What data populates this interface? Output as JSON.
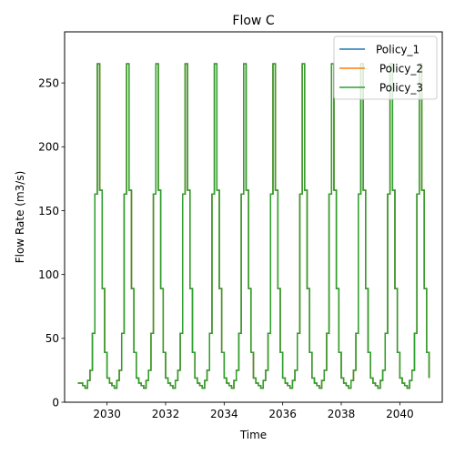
{
  "chart_data": {
    "type": "line",
    "title": "Flow C",
    "xlabel": "Time",
    "ylabel": "Flow Rate (m3/s)",
    "xlim": [
      2028.55,
      2041.45
    ],
    "ylim": [
      0,
      290
    ],
    "x_ticks": [
      2030,
      2032,
      2034,
      2036,
      2038,
      2040
    ],
    "x_tick_labels": [
      "2030",
      "2032",
      "2034",
      "2036",
      "2038",
      "2040"
    ],
    "y_ticks": [
      0,
      50,
      100,
      150,
      200,
      250
    ],
    "y_tick_labels": [
      "0",
      "50",
      "100",
      "150",
      "200",
      "250"
    ],
    "grid": false,
    "legend_position": "top-right",
    "step": "post",
    "x_start": 2029.0,
    "x_end": 2041.0,
    "months_per_year": 12,
    "series": [
      {
        "name": "Policy_1",
        "color": "#1f77b4",
        "values": [
          15,
          15,
          13,
          11,
          17,
          25,
          54,
          163,
          265,
          166,
          89,
          39,
          19,
          15,
          13,
          11,
          17,
          25,
          54,
          163,
          265,
          166,
          89,
          39,
          19,
          15,
          13,
          11,
          17,
          25,
          54,
          163,
          265,
          166,
          89,
          39,
          19,
          15,
          13,
          11,
          17,
          25,
          54,
          163,
          265,
          166,
          89,
          39,
          19,
          15,
          13,
          11,
          17,
          25,
          54,
          163,
          265,
          166,
          89,
          39,
          19,
          15,
          13,
          11,
          17,
          25,
          54,
          163,
          265,
          166,
          89,
          39,
          19,
          15,
          13,
          11,
          17,
          25,
          54,
          163,
          265,
          166,
          89,
          39,
          19,
          15,
          13,
          11,
          17,
          25,
          54,
          163,
          265,
          166,
          89,
          39,
          19,
          15,
          13,
          11,
          17,
          25,
          54,
          163,
          265,
          166,
          89,
          39,
          19,
          15,
          13,
          11,
          17,
          25,
          54,
          163,
          265,
          166,
          89,
          39,
          19,
          15,
          13,
          11,
          17,
          25,
          54,
          163,
          265,
          166,
          89,
          39,
          19,
          15,
          13,
          11,
          17,
          25,
          54,
          163,
          265,
          166,
          89,
          39,
          19
        ]
      },
      {
        "name": " Policy_2",
        "color": "#ff7f0e",
        "values": [
          15,
          15,
          13,
          11,
          17,
          25,
          54,
          163,
          265,
          166,
          89,
          39,
          19,
          15,
          13,
          11,
          17,
          25,
          54,
          163,
          265,
          166,
          89,
          39,
          19,
          15,
          13,
          11,
          17,
          25,
          54,
          163,
          265,
          166,
          89,
          39,
          19,
          15,
          13,
          11,
          17,
          25,
          54,
          163,
          265,
          166,
          89,
          39,
          19,
          15,
          13,
          11,
          17,
          25,
          54,
          163,
          265,
          166,
          89,
          39,
          19,
          15,
          13,
          11,
          17,
          25,
          54,
          163,
          265,
          166,
          89,
          39,
          19,
          15,
          13,
          11,
          17,
          25,
          54,
          163,
          265,
          166,
          89,
          39,
          19,
          15,
          13,
          11,
          17,
          25,
          54,
          163,
          265,
          166,
          89,
          39,
          19,
          15,
          13,
          11,
          17,
          25,
          54,
          163,
          265,
          166,
          89,
          39,
          19,
          15,
          13,
          11,
          17,
          25,
          54,
          163,
          265,
          166,
          89,
          39,
          19,
          15,
          13,
          11,
          17,
          25,
          54,
          163,
          265,
          166,
          89,
          39,
          19,
          15,
          13,
          11,
          17,
          25,
          54,
          163,
          265,
          166,
          89,
          39,
          19
        ]
      },
      {
        "name": " Policy_3",
        "color": "#2ca02c",
        "values": [
          15,
          15,
          13,
          11,
          17,
          25,
          54,
          163,
          265,
          166,
          89,
          39,
          19,
          15,
          13,
          11,
          17,
          25,
          54,
          163,
          265,
          166,
          89,
          39,
          19,
          15,
          13,
          11,
          17,
          25,
          54,
          163,
          265,
          166,
          89,
          39,
          19,
          15,
          13,
          11,
          17,
          25,
          54,
          163,
          265,
          166,
          89,
          39,
          19,
          15,
          13,
          11,
          17,
          25,
          54,
          163,
          265,
          166,
          89,
          39,
          19,
          15,
          13,
          11,
          17,
          25,
          54,
          163,
          265,
          166,
          89,
          39,
          19,
          15,
          13,
          11,
          17,
          25,
          54,
          163,
          265,
          166,
          89,
          39,
          19,
          15,
          13,
          11,
          17,
          25,
          54,
          163,
          265,
          166,
          89,
          39,
          19,
          15,
          13,
          11,
          17,
          25,
          54,
          163,
          265,
          166,
          89,
          39,
          19,
          15,
          13,
          11,
          17,
          25,
          54,
          163,
          265,
          166,
          89,
          39,
          19,
          15,
          13,
          11,
          17,
          25,
          54,
          163,
          265,
          166,
          89,
          39,
          19,
          15,
          13,
          11,
          17,
          25,
          54,
          163,
          265,
          166,
          89,
          39,
          19
        ]
      }
    ]
  }
}
